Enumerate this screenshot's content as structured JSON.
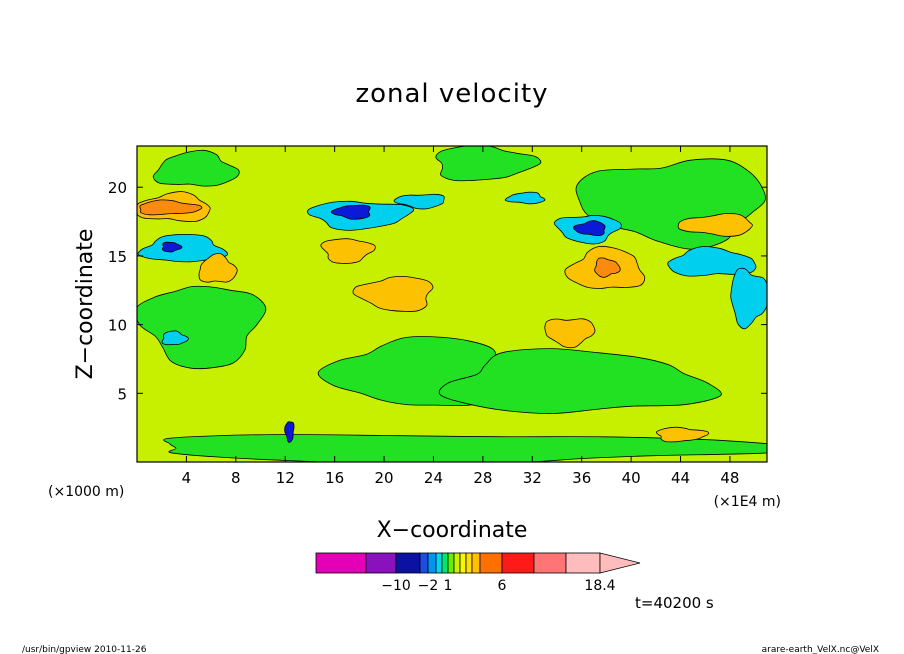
{
  "colors": {
    "bg": "#ffffff",
    "fill_pos_mid": "#c7f000",
    "fill_low": "#22e122",
    "fill_neg": "#00cfee",
    "fill_neg_strong": "#0b1ad6",
    "fill_pos": "#fcc100",
    "fill_pos_strong": "#fb8a10"
  },
  "chart_data": {
    "type": "heatmap",
    "title": "zonal velocity",
    "xlabel": "X−coordinate",
    "ylabel": "Z−coordinate",
    "x_unit": "(×1E4 m)",
    "y_unit": "(×1000 m)",
    "xlim": [
      0,
      51
    ],
    "ylim": [
      0,
      23
    ],
    "x_ticks": [
      "4",
      "8",
      "12",
      "16",
      "20",
      "24",
      "28",
      "32",
      "36",
      "40",
      "44",
      "48"
    ],
    "y_ticks": [
      "5",
      "10",
      "15",
      "20"
    ],
    "features": [
      {
        "level": "low",
        "x": [
          1.5,
          8
        ],
        "y": [
          20,
          22.5
        ]
      },
      {
        "level": "low",
        "x": [
          24,
          32
        ],
        "y": [
          20.5,
          23
        ]
      },
      {
        "level": "low",
        "x": [
          0.5,
          10
        ],
        "y": [
          7,
          13
        ]
      },
      {
        "level": "low",
        "x": [
          16,
          30
        ],
        "y": [
          4,
          9
        ]
      },
      {
        "level": "low",
        "x": [
          25,
          46
        ],
        "y": [
          3.5,
          8
        ]
      },
      {
        "level": "low",
        "x": [
          0,
          51
        ],
        "y": [
          0,
          2
        ]
      },
      {
        "level": "low",
        "x": [
          36,
          51
        ],
        "y": [
          16,
          22
        ]
      },
      {
        "level": "pos",
        "x": [
          0,
          6
        ],
        "y": [
          17.5,
          19.5
        ]
      },
      {
        "level": "pos_strong",
        "x": [
          0,
          5
        ],
        "y": [
          18,
          19
        ]
      },
      {
        "level": "neg",
        "x": [
          14,
          22
        ],
        "y": [
          17,
          19
        ]
      },
      {
        "level": "neg_strong",
        "x": [
          16,
          19
        ],
        "y": [
          17.7,
          18.7
        ]
      },
      {
        "level": "neg",
        "x": [
          0.5,
          7
        ],
        "y": [
          14.5,
          16.5
        ]
      },
      {
        "level": "neg_strong",
        "x": [
          2,
          3.5
        ],
        "y": [
          15.3,
          16
        ]
      },
      {
        "level": "neg",
        "x": [
          34,
          39
        ],
        "y": [
          16,
          18
        ]
      },
      {
        "level": "neg_strong",
        "x": [
          35.5,
          38
        ],
        "y": [
          16.5,
          17.5
        ]
      },
      {
        "level": "neg",
        "x": [
          43,
          50
        ],
        "y": [
          13.5,
          15.5
        ]
      },
      {
        "level": "neg",
        "x": [
          48,
          51
        ],
        "y": [
          10,
          14
        ]
      },
      {
        "level": "neg",
        "x": [
          21,
          25
        ],
        "y": [
          18.5,
          19.5
        ]
      },
      {
        "level": "neg",
        "x": [
          30,
          33
        ],
        "y": [
          18.8,
          19.6
        ]
      },
      {
        "level": "neg",
        "x": [
          2,
          4
        ],
        "y": [
          8.5,
          9.5
        ]
      },
      {
        "level": "pos",
        "x": [
          15,
          19
        ],
        "y": [
          14.5,
          16.3
        ]
      },
      {
        "level": "pos",
        "x": [
          18,
          24
        ],
        "y": [
          11,
          13.5
        ]
      },
      {
        "level": "pos",
        "x": [
          35,
          41
        ],
        "y": [
          12.5,
          15.5
        ]
      },
      {
        "level": "pos_strong",
        "x": [
          37,
          39
        ],
        "y": [
          13.5,
          14.8
        ]
      },
      {
        "level": "pos",
        "x": [
          33,
          37
        ],
        "y": [
          8.5,
          10.5
        ]
      },
      {
        "level": "pos",
        "x": [
          44,
          50
        ],
        "y": [
          16.5,
          18
        ]
      },
      {
        "level": "pos",
        "x": [
          5,
          8
        ],
        "y": [
          13,
          15
        ]
      },
      {
        "level": "pos",
        "x": [
          42,
          46
        ],
        "y": [
          1.5,
          2.5
        ]
      },
      {
        "level": "neg_strong",
        "x": [
          12,
          12.7
        ],
        "y": [
          1.5,
          3
        ]
      }
    ],
    "colorbar": {
      "colors": [
        "#e400b4",
        "#8a12bd",
        "#0b12a3",
        "#1f4be6",
        "#0096f0",
        "#00d6f0",
        "#00e672",
        "#62f100",
        "#cdf200",
        "#f7f700",
        "#ffe000",
        "#ffc000",
        "#ff7000",
        "#ff1a1a",
        "#ff7474",
        "#ffbcbc"
      ],
      "widths": [
        50,
        30,
        24,
        8,
        8,
        6,
        6,
        6,
        6,
        6,
        6,
        8,
        22,
        32,
        32,
        34
      ],
      "labels": [
        "−10",
        "−2",
        "1",
        "6",
        "18.4"
      ],
      "label_values": [
        -10,
        -2,
        1,
        6,
        18.4
      ]
    }
  },
  "annotations": {
    "time": "t=40200 s",
    "footer_left": "/usr/bin/gpview  2010-11-26",
    "footer_right": "arare-earth_VelX.nc@VelX"
  }
}
